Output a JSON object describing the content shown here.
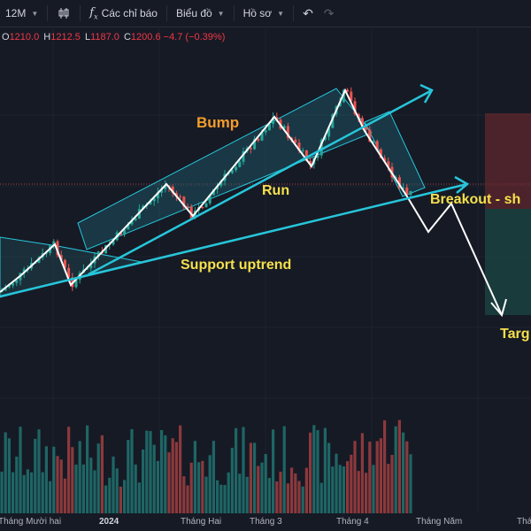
{
  "toolbar": {
    "interval": "12M",
    "indicators_label": "Các chỉ báo",
    "chart_type_label": "Biểu đồ",
    "profile_label": "Hồ sơ"
  },
  "ohlc": {
    "o_label": "O",
    "o_value": "1210.0",
    "h_label": "H",
    "h_value": "1212.5",
    "l_label": "L",
    "l_value": "1187.0",
    "c_label": "C",
    "c_value": "1200.6",
    "change": "−4.7 (−0.39%)"
  },
  "annotations": {
    "bump": "Bump",
    "run": "Run",
    "support": "Support uptrend",
    "breakout": "Breakout - sh",
    "target": "Targ"
  },
  "x_axis": [
    "Tháng Mười hai",
    "2024",
    "Tháng Hai",
    "Tháng 3",
    "Tháng 4",
    "Tháng Năm",
    "Tháng"
  ],
  "colors": {
    "up": "#26a69a",
    "down": "#ef5350",
    "trendline": "#26c6da",
    "label_yellow": "#f5e04c",
    "label_orange": "#f59d2a"
  }
}
